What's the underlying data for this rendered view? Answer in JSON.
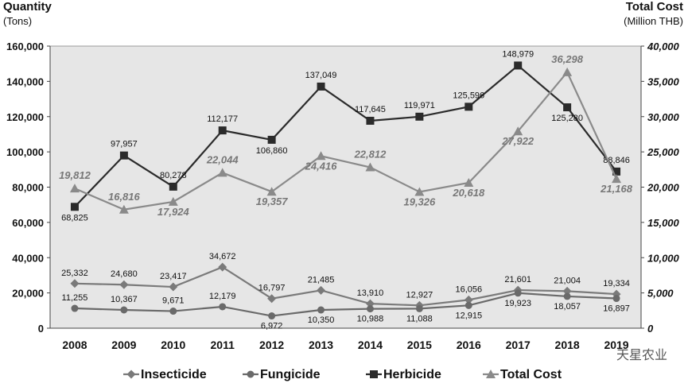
{
  "chart_data": {
    "type": "line",
    "left_axis": {
      "title": "Quantity",
      "unit": "(Tons)",
      "range": [
        0,
        160000
      ],
      "ticks": [
        "0",
        "20,000",
        "40,000",
        "60,000",
        "80,000",
        "100,000",
        "120,000",
        "140,000",
        "160,000"
      ]
    },
    "right_axis": {
      "title": "Total Cost",
      "unit": "(Million THB)",
      "range": [
        0,
        40000
      ],
      "ticks": [
        "0",
        "5,000",
        "10,000",
        "15,000",
        "20,000",
        "25,000",
        "30,000",
        "35,000",
        "40,000"
      ]
    },
    "categories": [
      "2008",
      "2009",
      "2010",
      "2011",
      "2012",
      "2013",
      "2014",
      "2015",
      "2016",
      "2017",
      "2018",
      "2019"
    ],
    "series": [
      {
        "name": "Insecticide",
        "axis": "left",
        "marker": "diamond",
        "color": "#777777",
        "values": [
          25332,
          24680,
          23417,
          34672,
          16797,
          21485,
          13910,
          12927,
          16056,
          21601,
          21004,
          19334
        ],
        "labels": [
          "25,332",
          "24,680",
          "23,417",
          "34,672",
          "16,797",
          "21,485",
          "13,910",
          "12,927",
          "16,056",
          "21,601",
          "21,004",
          "19,334"
        ]
      },
      {
        "name": "Fungicide",
        "axis": "left",
        "marker": "circle",
        "color": "#6a6a6a",
        "values": [
          11255,
          10367,
          9671,
          12179,
          6972,
          10350,
          10988,
          11088,
          12915,
          19923,
          18057,
          16897
        ],
        "labels": [
          "11,255",
          "10,367",
          "9,671",
          "12,179",
          "6,972",
          "10,350",
          "10,988",
          "11,088",
          "12,915",
          "19,923",
          "18,057",
          "16,897"
        ]
      },
      {
        "name": "Herbicide",
        "axis": "left",
        "marker": "square",
        "color": "#333333",
        "values": [
          68825,
          97957,
          80278,
          112177,
          106860,
          137049,
          117645,
          119971,
          125596,
          148979,
          125280,
          88846
        ],
        "labels": [
          "68,825",
          "97,957",
          "80,278",
          "112,177",
          "106,860",
          "137,049",
          "117,645",
          "119,971",
          "125,596",
          "148,979",
          "125,280",
          "88,846"
        ]
      },
      {
        "name": "Total Cost",
        "axis": "right",
        "marker": "triangle",
        "color": "#888888",
        "values": [
          19812,
          16816,
          17924,
          22044,
          19357,
          24416,
          22812,
          19326,
          20618,
          27922,
          36298,
          21168
        ],
        "labels": [
          "19,812",
          "16,816",
          "17,924",
          "22,044",
          "19,357",
          "24,416",
          "22,812",
          "19,326",
          "20,618",
          "27,922",
          "36,298",
          "21,168"
        ]
      }
    ],
    "legend_position": "bottom",
    "grid": false,
    "plot_background": "#e6e6e6"
  },
  "watermark": "天星农业"
}
